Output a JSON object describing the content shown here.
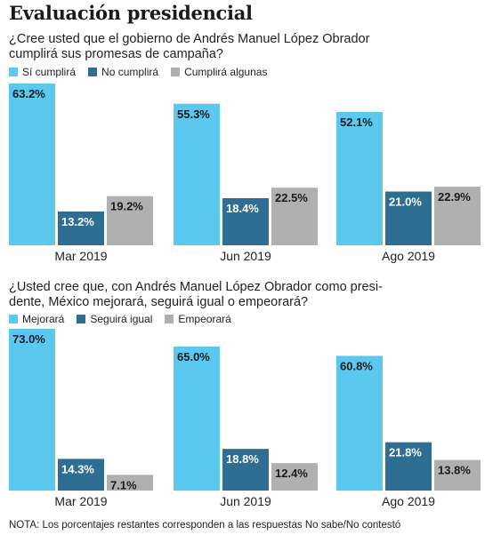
{
  "title": "Evaluación presidencial",
  "note": "NOTA: Los porcentajes restantes corresponden a las respuestas No sabe/No contestó",
  "chart_data": [
    {
      "type": "bar",
      "title": "¿Cree usted que el gobierno de Andrés Manuel López Obrador cumplirá sus promesas de campaña?",
      "title_lines": [
        "¿Cree usted que el gobierno de Andrés Manuel López Obrador",
        "cumplirá sus promesas de campaña?"
      ],
      "categories": [
        "Mar 2019",
        "Jun 2019",
        "Ago 2019"
      ],
      "series": [
        {
          "name": "Sí cumplirá",
          "color": "#5bc8f0",
          "values": [
            63.2,
            55.3,
            52.1
          ]
        },
        {
          "name": "No cumplirá",
          "color": "#2e6e92",
          "values": [
            13.2,
            18.4,
            21.0
          ]
        },
        {
          "name": "Cumplirá algunas",
          "color": "#b0b0b0",
          "values": [
            19.2,
            22.5,
            22.9
          ]
        }
      ],
      "value_format": "percent_one_decimal",
      "ylim": [
        0,
        63.2
      ],
      "xlabel": "",
      "ylabel": "",
      "grid": false,
      "legend_position": "top-left"
    },
    {
      "type": "bar",
      "title": "¿Usted cree que, con Andrés Manuel López Obrador como presidente, México mejorará, seguirá igual o empeorará?",
      "title_lines": [
        "¿Usted cree que, con Andrés Manuel López Obrador como presi-",
        "dente, México mejorará, seguirá igual o empeorará?"
      ],
      "categories": [
        "Mar 2019",
        "Jun 2019",
        "Ago 2019"
      ],
      "series": [
        {
          "name": "Mejorará",
          "color": "#5bc8f0",
          "values": [
            73.0,
            65.0,
            60.8
          ]
        },
        {
          "name": "Seguirá igual",
          "color": "#2e6e92",
          "values": [
            14.3,
            18.8,
            21.8
          ]
        },
        {
          "name": "Empeorará",
          "color": "#b0b0b0",
          "values": [
            7.1,
            12.4,
            13.8
          ]
        }
      ],
      "value_format": "percent_one_decimal",
      "ylim": [
        0,
        73.0
      ],
      "xlabel": "",
      "ylabel": "",
      "grid": false,
      "legend_position": "top-left"
    }
  ]
}
